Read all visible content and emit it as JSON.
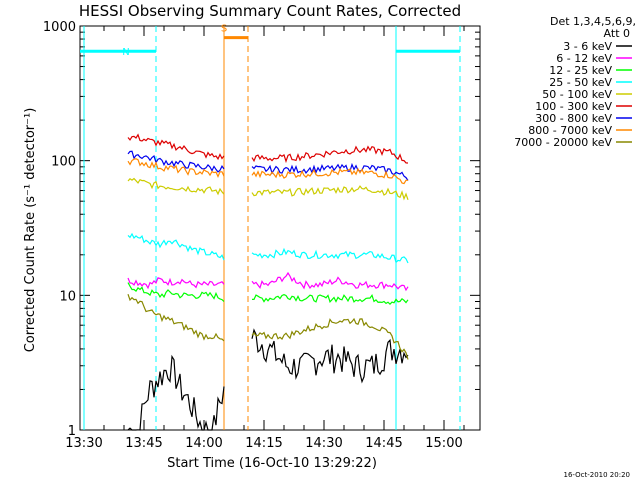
{
  "chart_data": {
    "type": "line",
    "title": "HESSI Observing Summary Count Rates, Corrected",
    "xlabel": "Start Time (16-Oct-10 13:29:22)",
    "ylabel": "Corrected Count Rate (s⁻¹ detector⁻¹)",
    "ylog": true,
    "ylim": [
      1,
      1000
    ],
    "xlim": [
      "13:29",
      "15:09"
    ],
    "xticks": [
      "13:30",
      "13:45",
      "14:00",
      "14:15",
      "14:30",
      "14:45",
      "15:00"
    ],
    "yticks": [
      "1",
      "10",
      "100",
      "1000"
    ],
    "legend": {
      "placement": "outside-right",
      "header": [
        "Det 1,3,4,5,6,9,",
        "Att 0"
      ],
      "entries": [
        {
          "label": "3 - 6 keV",
          "color": "#000000"
        },
        {
          "label": "6 - 12 keV",
          "color": "#ff00ff"
        },
        {
          "label": "12 - 25 keV",
          "color": "#00ff00"
        },
        {
          "label": "25 - 50 keV",
          "color": "#00ffff"
        },
        {
          "label": "50 - 100 keV",
          "color": "#cccc00"
        },
        {
          "label": "100 - 300 keV",
          "color": "#dd0000"
        },
        {
          "label": "300 - 800 keV",
          "color": "#0000ee"
        },
        {
          "label": "800 - 7000 keV",
          "color": "#ff8800"
        },
        {
          "label": "7000 - 20000 keV",
          "color": "#888800"
        }
      ]
    },
    "timestamp": "16-Oct-2010 20:20",
    "markers": [
      {
        "label": "N",
        "color": "#00ffff",
        "bar": [
          "13:29",
          "13:48"
        ],
        "lines": [
          "13:30",
          "13:48"
        ],
        "level": 650
      },
      {
        "label": "S",
        "color": "#ff8800",
        "bar": [
          "14:05",
          "14:11"
        ],
        "lines": [
          "14:05",
          "14:11"
        ],
        "level": 820
      },
      {
        "label": "",
        "color": "#00ffff",
        "bar": [
          "14:48",
          "15:04"
        ],
        "lines": [
          "14:48",
          "15:04"
        ],
        "level": 650
      }
    ],
    "segments": [
      {
        "start": "13:41",
        "end": "14:05"
      },
      {
        "start": "14:12",
        "end": "14:51"
      }
    ],
    "series": [
      {
        "color": "#000000",
        "values1": [
          1.0,
          1.0,
          2.0,
          2.5,
          3.0,
          2.0,
          1.5,
          1.0,
          1.0,
          2.0
        ],
        "values2": [
          5.0,
          4.0,
          3.0,
          3.0,
          3.5,
          3.5,
          3.0,
          3.0,
          4.0,
          4.0
        ]
      },
      {
        "color": "#ff00ff",
        "values1": [
          13,
          12.5,
          12,
          13,
          12.5,
          13,
          12,
          12,
          12,
          12
        ],
        "values2": [
          12,
          12,
          14,
          12,
          12,
          13,
          12,
          12,
          12,
          11
        ]
      },
      {
        "color": "#00ff00",
        "values1": [
          12,
          11,
          10.5,
          10,
          10.5,
          10,
          10,
          10,
          10,
          9.5
        ],
        "values2": [
          9.5,
          9.5,
          10,
          9.5,
          9.5,
          9.5,
          9.5,
          9.5,
          9,
          9
        ]
      },
      {
        "color": "#00ffff",
        "values1": [
          28,
          27,
          25,
          24,
          26,
          24,
          22,
          21,
          20,
          19
        ],
        "values2": [
          20,
          20,
          21,
          20,
          20,
          20,
          20,
          20,
          19,
          18
        ]
      },
      {
        "color": "#cccc00",
        "values1": [
          72,
          70,
          67,
          65,
          64,
          63,
          62,
          61,
          60,
          58
        ],
        "values2": [
          58,
          58,
          58,
          59,
          60,
          61,
          62,
          61,
          58,
          54
        ]
      },
      {
        "color": "#dd0000",
        "values1": [
          150,
          148,
          140,
          135,
          130,
          125,
          118,
          112,
          108,
          106
        ],
        "values2": [
          105,
          104,
          105,
          108,
          112,
          117,
          120,
          120,
          115,
          98
        ]
      },
      {
        "color": "#0000ee",
        "values1": [
          112,
          110,
          105,
          100,
          97,
          94,
          92,
          90,
          88,
          87
        ],
        "values2": [
          87,
          86,
          86,
          86,
          87,
          88,
          89,
          88,
          84,
          75
        ]
      },
      {
        "color": "#ff8800",
        "values1": [
          100,
          98,
          94,
          90,
          88,
          85,
          83,
          82,
          80,
          80
        ],
        "values2": [
          79,
          79,
          79,
          80,
          81,
          82,
          82,
          81,
          78,
          68
        ]
      },
      {
        "color": "#888800",
        "values1": [
          10,
          9,
          7.5,
          7,
          6.5,
          6,
          5.5,
          5,
          5,
          4.5
        ],
        "values2": [
          5,
          5,
          5,
          5.5,
          6,
          6.5,
          6.5,
          6,
          5,
          3.5
        ]
      }
    ]
  }
}
